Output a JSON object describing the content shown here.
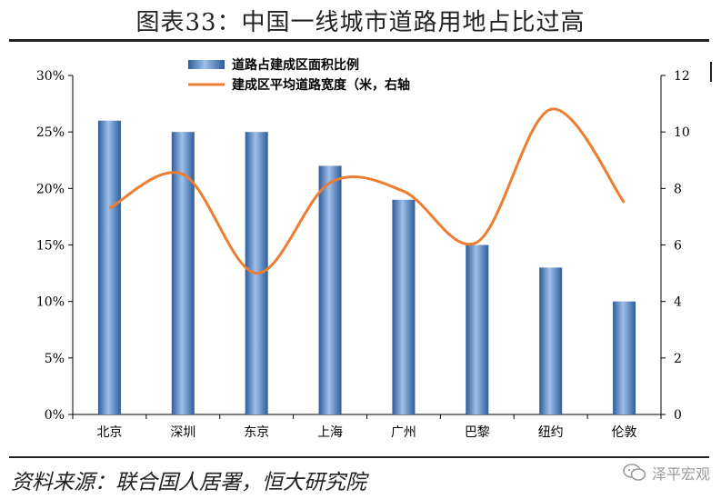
{
  "header": {
    "title": "图表33：中国一线城市道路用地占比过高"
  },
  "footer": {
    "source": "资料来源：联合国人居署，恒大研究院",
    "watermark": "泽平宏观",
    "watermark_icon": "wechat-logo-icon"
  },
  "colors": {
    "bar": "#4f81bd",
    "line": "#ed7d31",
    "axis": "#000000"
  },
  "chart_data": {
    "type": "bar",
    "categories": [
      "北京",
      "深圳",
      "东京",
      "上海",
      "广州",
      "巴黎",
      "纽约",
      "伦敦"
    ],
    "series": [
      {
        "name": "道路占建成区面积比例",
        "type": "bar",
        "axis": "left",
        "values": [
          0.26,
          0.25,
          0.25,
          0.22,
          0.19,
          0.15,
          0.13,
          0.1
        ]
      },
      {
        "name": "建成区平均道路宽度（米，右轴",
        "type": "line",
        "smooth": true,
        "axis": "right",
        "values": [
          7.3,
          8.5,
          5.0,
          8.2,
          7.9,
          6.1,
          10.8,
          7.5
        ]
      }
    ],
    "left_axis": {
      "ylim": [
        0,
        0.3
      ],
      "ticks": [
        "0%",
        "5%",
        "10%",
        "15%",
        "20%",
        "25%",
        "30%"
      ]
    },
    "right_axis": {
      "ylim": [
        0,
        12
      ],
      "ticks": [
        "0",
        "2",
        "4",
        "6",
        "8",
        "10",
        "12"
      ]
    },
    "grid": false,
    "legend": "top-center"
  }
}
